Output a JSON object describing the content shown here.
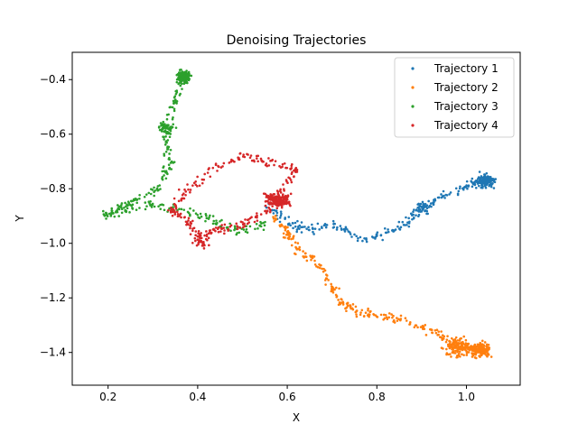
{
  "chart_data": {
    "type": "scatter",
    "title": "Denoising Trajectories",
    "xlabel": "X",
    "ylabel": "Y",
    "xlim": [
      0.12,
      1.12
    ],
    "ylim": [
      -1.52,
      -0.3
    ],
    "xticks": [
      0.2,
      0.4,
      0.6,
      0.8,
      1.0
    ],
    "xtick_labels": [
      "0.2",
      "0.4",
      "0.6",
      "0.8",
      "1.0"
    ],
    "yticks": [
      -0.4,
      -0.6,
      -0.8,
      -1.0,
      -1.2,
      -1.4
    ],
    "ytick_labels": [
      "−0.4",
      "−0.6",
      "−0.8",
      "−1.0",
      "−1.2",
      "−1.4"
    ],
    "grid": false,
    "legend_position": "top-right",
    "series": [
      {
        "name": "Trajectory 1",
        "color": "#1f77b4",
        "waypoints": [
          [
            0.55,
            -0.86
          ],
          [
            0.6,
            -0.92
          ],
          [
            0.64,
            -0.95
          ],
          [
            0.7,
            -0.93
          ],
          [
            0.76,
            -0.98
          ],
          [
            0.82,
            -0.97
          ],
          [
            0.87,
            -0.92
          ],
          [
            0.9,
            -0.86
          ],
          [
            0.95,
            -0.83
          ],
          [
            1.0,
            -0.79
          ],
          [
            1.04,
            -0.77
          ],
          [
            1.06,
            -0.77
          ]
        ],
        "clusters": [
          {
            "center": [
              1.04,
              -0.77
            ],
            "radius": 0.025,
            "count": 110
          },
          {
            "center": [
              0.9,
              -0.87
            ],
            "radius": 0.025,
            "count": 30
          }
        ]
      },
      {
        "name": "Trajectory 2",
        "color": "#ff7f0e",
        "waypoints": [
          [
            0.57,
            -0.9
          ],
          [
            0.6,
            -0.96
          ],
          [
            0.62,
            -1.02
          ],
          [
            0.66,
            -1.06
          ],
          [
            0.7,
            -1.16
          ],
          [
            0.72,
            -1.22
          ],
          [
            0.76,
            -1.25
          ],
          [
            0.8,
            -1.26
          ],
          [
            0.86,
            -1.28
          ],
          [
            0.92,
            -1.32
          ],
          [
            0.96,
            -1.36
          ],
          [
            1.0,
            -1.38
          ],
          [
            1.04,
            -1.4
          ]
        ],
        "clusters": [
          {
            "center": [
              1.03,
              -1.39
            ],
            "radius": 0.03,
            "count": 150
          },
          {
            "center": [
              0.98,
              -1.38
            ],
            "radius": 0.035,
            "count": 110
          }
        ]
      },
      {
        "name": "Trajectory 3",
        "color": "#2ca02c",
        "waypoints": [
          [
            0.55,
            -0.93
          ],
          [
            0.49,
            -0.96
          ],
          [
            0.43,
            -0.91
          ],
          [
            0.37,
            -0.88
          ],
          [
            0.3,
            -0.86
          ],
          [
            0.23,
            -0.88
          ],
          [
            0.19,
            -0.9
          ],
          [
            0.25,
            -0.85
          ],
          [
            0.31,
            -0.8
          ],
          [
            0.34,
            -0.72
          ],
          [
            0.33,
            -0.62
          ],
          [
            0.34,
            -0.53
          ],
          [
            0.36,
            -0.42
          ],
          [
            0.37,
            -0.37
          ]
        ],
        "clusters": [
          {
            "center": [
              0.37,
              -0.39
            ],
            "radius": 0.02,
            "count": 100
          },
          {
            "center": [
              0.33,
              -0.58
            ],
            "radius": 0.025,
            "count": 50
          }
        ]
      },
      {
        "name": "Trajectory 4",
        "color": "#d62728",
        "waypoints": [
          [
            0.58,
            -0.84
          ],
          [
            0.54,
            -0.9
          ],
          [
            0.49,
            -0.94
          ],
          [
            0.44,
            -0.95
          ],
          [
            0.4,
            -0.98
          ],
          [
            0.38,
            -0.92
          ],
          [
            0.34,
            -0.88
          ],
          [
            0.38,
            -0.8
          ],
          [
            0.44,
            -0.72
          ],
          [
            0.5,
            -0.68
          ],
          [
            0.56,
            -0.7
          ],
          [
            0.62,
            -0.73
          ],
          [
            0.58,
            -0.83
          ]
        ],
        "clusters": [
          {
            "center": [
              0.58,
              -0.84
            ],
            "radius": 0.03,
            "count": 160
          },
          {
            "center": [
              0.41,
              -1.0
            ],
            "radius": 0.02,
            "count": 25
          }
        ]
      }
    ]
  }
}
